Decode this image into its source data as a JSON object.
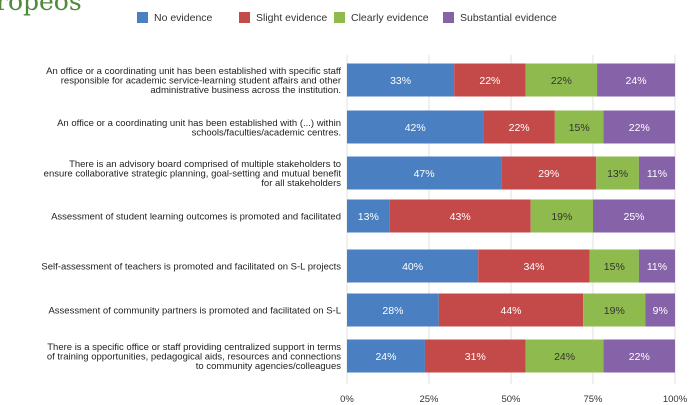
{
  "heading_fragment": "ropeos",
  "chart_data": {
    "type": "bar",
    "orientation": "horizontal",
    "stacked": true,
    "legend_position": "top",
    "grid": true,
    "xlim": [
      0,
      100
    ],
    "xticks": [
      "0%",
      "25%",
      "50%",
      "75%",
      "100%"
    ],
    "categories": [
      [
        "An office or a coordinating unit has been established with specific staff",
        "responsible for academic service-learning student affairs and other",
        "administrative business across the institution."
      ],
      [
        "An office or a coordinating unit has been established with  (...)  within",
        "schools/faculties/academic centres."
      ],
      [
        "There is an advisory board comprised of multiple stakeholders to",
        "ensure collaborative strategic planning, goal-setting and mutual benefit",
        "for all stakeholders"
      ],
      [
        "Assessment of student learning outcomes is promoted and facilitated"
      ],
      [
        "Self-assessment of teachers is promoted and facilitated on S-L projects"
      ],
      [
        "Assessment of community partners is promoted and facilitated on S-L"
      ],
      [
        "There is a specific office or staff providing centralized support in terms",
        "of training opportunities, pedagogical aids, resources and connections",
        "to community agencies/colleagues"
      ]
    ],
    "series": [
      {
        "name": "No evidence",
        "color": "#4a7fc1",
        "values": [
          33,
          42,
          47,
          13,
          40,
          28,
          24
        ]
      },
      {
        "name": "Slight evidence",
        "color": "#c44a4a",
        "values": [
          22,
          22,
          29,
          43,
          34,
          44,
          31
        ]
      },
      {
        "name": "Clearly evidence",
        "color": "#8fba4e",
        "values": [
          22,
          15,
          13,
          19,
          15,
          19,
          24
        ]
      },
      {
        "name": "Substantial evidence",
        "color": "#8663a8",
        "values": [
          24,
          22,
          11,
          25,
          11,
          9,
          22
        ]
      }
    ]
  }
}
